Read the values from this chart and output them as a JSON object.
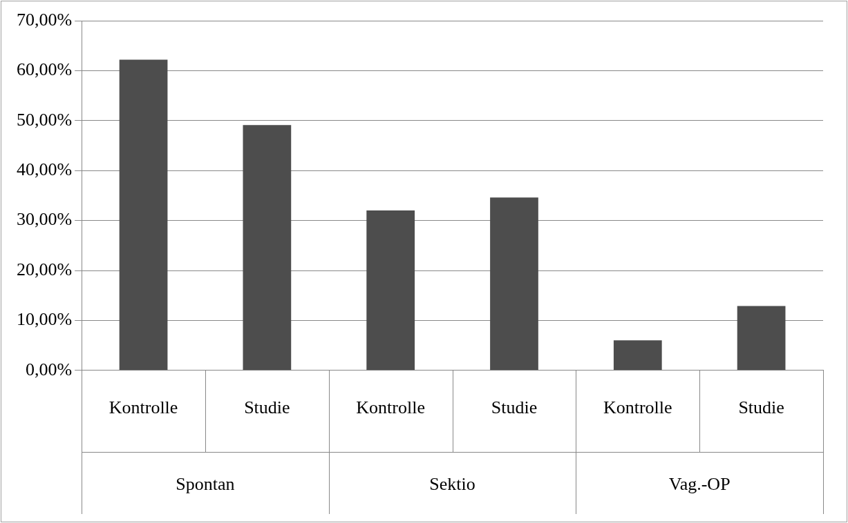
{
  "chart_data": {
    "type": "bar",
    "categories": [
      "Kontrolle",
      "Studie",
      "Kontrolle",
      "Studie",
      "Kontrolle",
      "Studie"
    ],
    "values": [
      62.2,
      49.1,
      32.0,
      34.6,
      6.0,
      12.9
    ],
    "color": "#4d4d4d",
    "ylim": [
      0,
      70
    ],
    "yticks": [
      {
        "value": 0,
        "label": "0,00%"
      },
      {
        "value": 10,
        "label": "10,00%"
      },
      {
        "value": 20,
        "label": "20,00%"
      },
      {
        "value": 30,
        "label": "30,00%"
      },
      {
        "value": 40,
        "label": "40,00%"
      },
      {
        "value": 50,
        "label": "50,00%"
      },
      {
        "value": 60,
        "label": "60,00%"
      },
      {
        "value": 70,
        "label": "70,00%"
      }
    ],
    "grid": "y",
    "annotations": [
      "Spontan",
      "Sektio",
      "Vag.-OP"
    ]
  }
}
